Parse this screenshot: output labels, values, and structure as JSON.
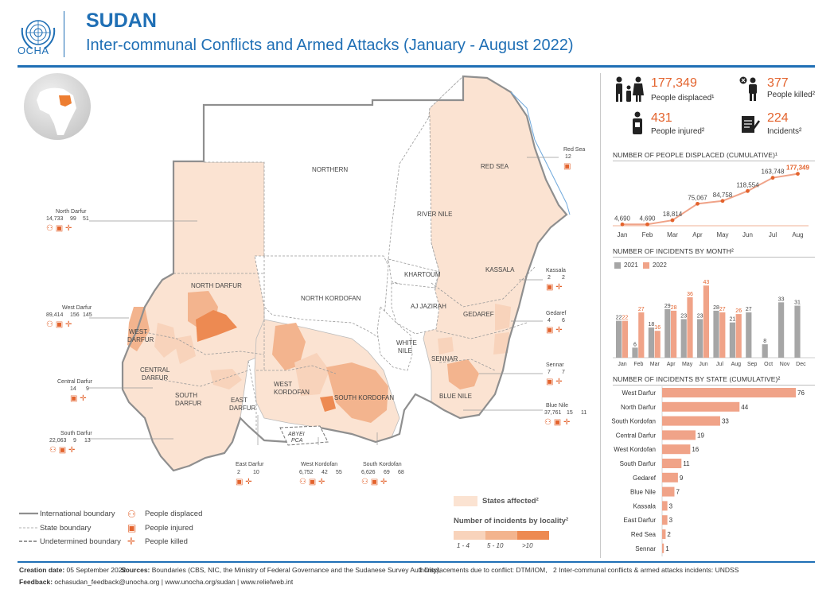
{
  "header": {
    "org": "OCHA",
    "title": "SUDAN",
    "subtitle": "Inter-communal Conflicts and Armed Attacks (January - August 2022)"
  },
  "key_figures": {
    "displaced_value": "177,349",
    "displaced_label": "People displaced¹",
    "killed_value": "377",
    "killed_label": "People killed²",
    "injured_value": "431",
    "injured_label": "People injured²",
    "incidents_value": "224",
    "incidents_label": "Incidents²"
  },
  "colors": {
    "brand": "#1f6fb5",
    "accent": "#e3632d",
    "bar_2021": "#a6a6a6",
    "bar_2022": "#f0a388",
    "state_fill": "#fbe3d2",
    "locality_low": "#f8d3bb",
    "locality_mid": "#f3b48e",
    "locality_high": "#ed8a52"
  },
  "chart_data": [
    {
      "type": "line",
      "title": "NUMBER OF PEOPLE DISPLACED (CUMULATIVE)¹",
      "x": [
        "Jan",
        "Feb",
        "Mar",
        "Apr",
        "May",
        "Jun",
        "Jul",
        "Aug"
      ],
      "values": [
        4690,
        4690,
        18814,
        75067,
        84758,
        118554,
        163748,
        177349
      ],
      "labels": [
        "4,690",
        "4,690",
        "18,814",
        "75,067",
        "84,758",
        "118,554",
        "163,748",
        "177,349"
      ],
      "ylim": [
        0,
        190000
      ]
    },
    {
      "type": "bar",
      "title": "NUMBER OF INCIDENTS BY MONTH²",
      "categories": [
        "Jan",
        "Feb",
        "Mar",
        "Apr",
        "May",
        "Jun",
        "Jul",
        "Aug",
        "Sep",
        "Oct",
        "Nov",
        "Dec"
      ],
      "series": [
        {
          "name": "2021",
          "values": [
            22,
            6,
            18,
            29,
            23,
            23,
            28,
            21,
            27,
            8,
            33,
            31
          ]
        },
        {
          "name": "2022",
          "values": [
            22,
            27,
            16,
            28,
            36,
            43,
            27,
            26,
            null,
            null,
            null,
            null
          ]
        }
      ],
      "ylim": [
        0,
        45
      ]
    },
    {
      "type": "bar",
      "orientation": "horizontal",
      "title": "NUMBER OF INCIDENTS BY STATE (CUMULATIVE)²",
      "categories": [
        "West Darfur",
        "North Darfur",
        "South Kordofan",
        "Central Darfur",
        "West Kordofan",
        "South Darfur",
        "Gedaref",
        "Blue Nile",
        "Kassala",
        "East Darfur",
        "Red Sea",
        "Sennar"
      ],
      "values": [
        76,
        44,
        33,
        19,
        16,
        11,
        9,
        7,
        3,
        3,
        2,
        1
      ],
      "xlim": [
        0,
        76
      ]
    }
  ],
  "map": {
    "state_labels": [
      {
        "text": "NORTHERN"
      },
      {
        "text": "RED SEA"
      },
      {
        "text": "RIVER NILE"
      },
      {
        "text": "NORTH DARFUR"
      },
      {
        "text": "NORTH KORDOFAN"
      },
      {
        "text": "KHARTOUM"
      },
      {
        "text": "KASSALA"
      },
      {
        "text": "AJ JAZIRAH"
      },
      {
        "text": "GEDAREF"
      },
      {
        "text": "WHITE"
      },
      {
        "text": "NILE"
      },
      {
        "text": "WEST"
      },
      {
        "text": "DARFUR"
      },
      {
        "text": "CENTRAL"
      },
      {
        "text": "DARFUR"
      },
      {
        "text": "SENNAR"
      },
      {
        "text": "WEST"
      },
      {
        "text": "KORDOFAN"
      },
      {
        "text": "SOUTH KORDOFAN"
      },
      {
        "text": "SOUTH"
      },
      {
        "text": "DARFUR"
      },
      {
        "text": "EAST"
      },
      {
        "text": "DARFUR"
      },
      {
        "text": "BLUE NILE"
      },
      {
        "text": "ABYEI"
      },
      {
        "text": "PCA"
      }
    ],
    "callouts": [
      {
        "name": "North Darfur",
        "values": [
          "14,733",
          "99",
          "51"
        ]
      },
      {
        "name": "West Darfur",
        "values": [
          "89,414",
          "156",
          "145"
        ]
      },
      {
        "name": "Central Darfur",
        "values": [
          "14",
          "9"
        ]
      },
      {
        "name": "South Darfur",
        "values": [
          "22,063",
          "9",
          "13"
        ]
      },
      {
        "name": "East Darfur",
        "values": [
          "2",
          "10"
        ]
      },
      {
        "name": "West Kordofan",
        "values": [
          "6,752",
          "42",
          "55"
        ]
      },
      {
        "name": "South Kordofan",
        "values": [
          "6,626",
          "69",
          "68"
        ]
      },
      {
        "name": "Red Sea",
        "values": [
          "12"
        ]
      },
      {
        "name": "Kassala",
        "values": [
          "2",
          "2"
        ]
      },
      {
        "name": "Gedaref",
        "values": [
          "4",
          "6"
        ]
      },
      {
        "name": "Sennar",
        "values": [
          "7",
          "7"
        ]
      },
      {
        "name": "Blue Nile",
        "values": [
          "37,761",
          "15",
          "11"
        ]
      }
    ]
  },
  "legend": {
    "international": "International boundary",
    "state": "State boundary",
    "undetermined": "Undetermined boundary",
    "displaced": "People displaced",
    "injured": "People injured",
    "killed": "People killed",
    "states_affected": "States affected²",
    "locality_title": "Number of incidents by locality²",
    "bins": [
      "1 - 4",
      "5 - 10",
      ">10"
    ]
  },
  "footer": {
    "creation_label": "Creation date:",
    "creation_value": "05 September 2022",
    "sources_label": "Sources:",
    "sources_value": "Boundaries (CBS, NIC, the Ministry of Federal Governance and the Sudanese Survey Authority),",
    "note1": "1 Displacements due to conflict: DTM/IOM,",
    "note2": "2 Inter-communal conflicts & armed attacks incidents: UNDSS",
    "feedback_label": "Feedback:",
    "feedback_value": "ochasudan_feedback@unocha.org | www.unocha.org/sudan | www.reliefweb.int"
  }
}
